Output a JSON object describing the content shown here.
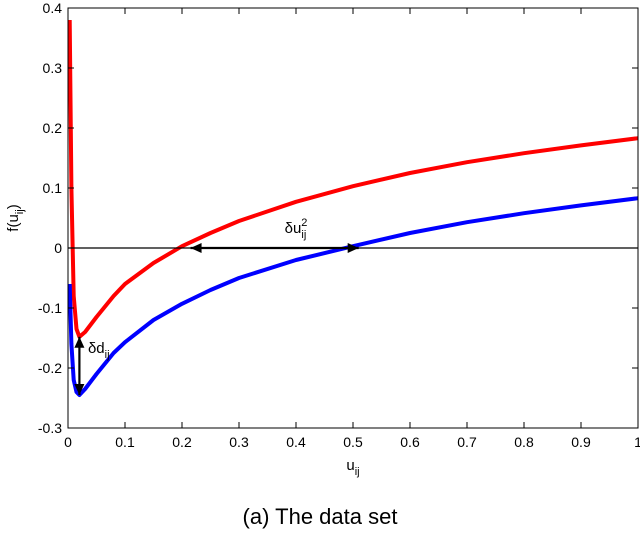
{
  "caption": "(a) The data set",
  "chart_data": {
    "type": "line",
    "xlabel": "u_ij",
    "ylabel": "f(u_ij)",
    "xlim": [
      0,
      1
    ],
    "ylim": [
      -0.3,
      0.4
    ],
    "xticks": [
      "0",
      "0.1",
      "0.2",
      "0.3",
      "0.4",
      "0.5",
      "0.6",
      "0.7",
      "0.8",
      "0.9",
      "1"
    ],
    "yticks": [
      "-0.3",
      "-0.2",
      "-0.1",
      "0",
      "0.1",
      "0.2",
      "0.3",
      "0.4"
    ],
    "grid": false,
    "series": [
      {
        "color": "#ff0000",
        "x": [
          0.003,
          0.006,
          0.01,
          0.015,
          0.02,
          0.03,
          0.05,
          0.08,
          0.1,
          0.15,
          0.2,
          0.25,
          0.3,
          0.4,
          0.5,
          0.6,
          0.7,
          0.8,
          0.9,
          1.0
        ],
        "y": [
          0.38,
          0.1,
          -0.08,
          -0.135,
          -0.148,
          -0.14,
          -0.115,
          -0.08,
          -0.06,
          -0.025,
          0.003,
          0.025,
          0.045,
          0.077,
          0.103,
          0.125,
          0.143,
          0.158,
          0.171,
          0.183
        ]
      },
      {
        "color": "#0000ff",
        "x": [
          0.003,
          0.006,
          0.01,
          0.015,
          0.02,
          0.03,
          0.05,
          0.08,
          0.1,
          0.15,
          0.2,
          0.25,
          0.3,
          0.4,
          0.5,
          0.6,
          0.7,
          0.8,
          0.9,
          1.0
        ],
        "y": [
          -0.06,
          -0.16,
          -0.22,
          -0.24,
          -0.245,
          -0.235,
          -0.21,
          -0.175,
          -0.157,
          -0.12,
          -0.093,
          -0.07,
          -0.05,
          -0.02,
          0.003,
          0.025,
          0.043,
          0.058,
          0.071,
          0.083
        ]
      }
    ],
    "annotations": [
      {
        "label": "δd",
        "sub": "ij",
        "sup": "",
        "from": [
          0.02,
          -0.148
        ],
        "to": [
          0.02,
          -0.245
        ],
        "text_at": [
          0.035,
          -0.175
        ]
      },
      {
        "label": "δu",
        "sub": "ij",
        "sup": "2",
        "from": [
          0.215,
          0.0
        ],
        "to": [
          0.51,
          0.0
        ],
        "text_at": [
          0.38,
          0.025
        ]
      }
    ]
  }
}
